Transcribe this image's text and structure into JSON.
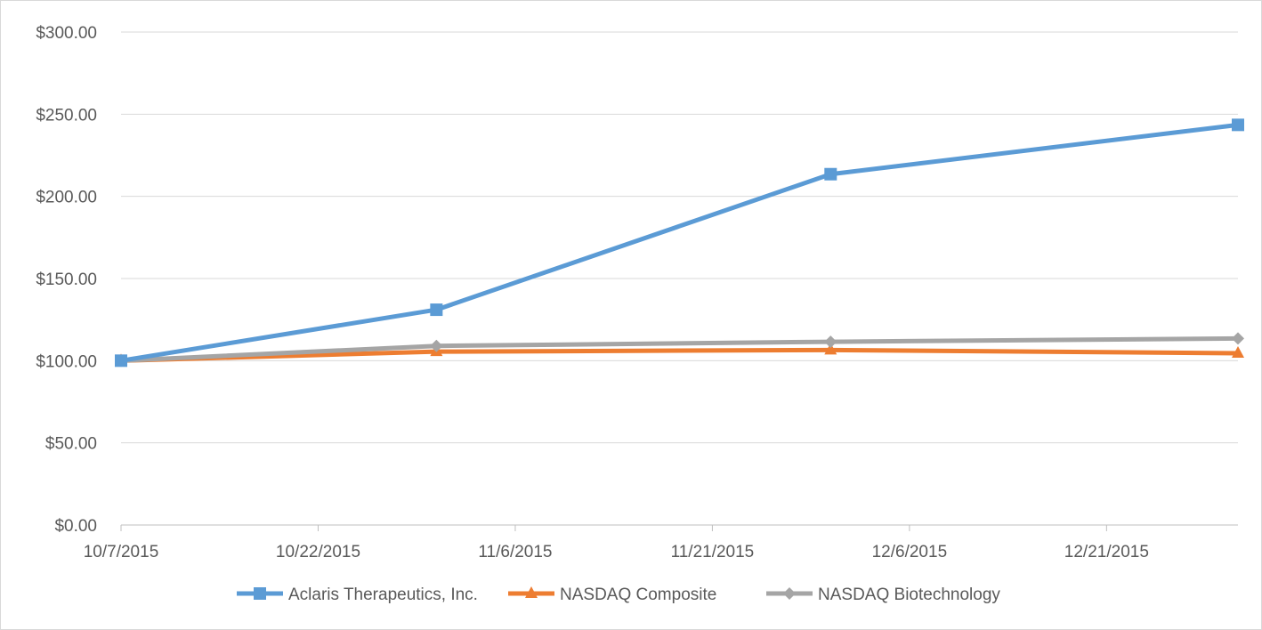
{
  "chart_data": {
    "type": "line",
    "title": "",
    "xlabel": "",
    "ylabel": "",
    "x_ticks": [
      "10/7/2015",
      "10/22/2015",
      "11/6/2015",
      "11/21/2015",
      "12/6/2015",
      "12/21/2015"
    ],
    "x_range": [
      "2015-10-07",
      "2015-12-31"
    ],
    "y_ticks": [
      "$0.00",
      "$50.00",
      "$100.00",
      "$150.00",
      "$200.00",
      "$250.00",
      "$300.00"
    ],
    "ylim": [
      0,
      300
    ],
    "grid": "horizontal",
    "legend": "bottom",
    "x": [
      "2015-10-07",
      "2015-10-31",
      "2015-11-30",
      "2015-12-31"
    ],
    "series": [
      {
        "name": "Aclaris Therapeutics, Inc.",
        "values": [
          100,
          131,
          213.5,
          243.5
        ],
        "color": "#5b9bd5",
        "marker": "square"
      },
      {
        "name": "NASDAQ Composite",
        "values": [
          100,
          105.5,
          106.5,
          104.5
        ],
        "color": "#ed7d31",
        "marker": "triangle"
      },
      {
        "name": "NASDAQ Biotechnology",
        "values": [
          100,
          109,
          111.5,
          113.5
        ],
        "color": "#a5a5a5",
        "marker": "diamond"
      }
    ]
  }
}
